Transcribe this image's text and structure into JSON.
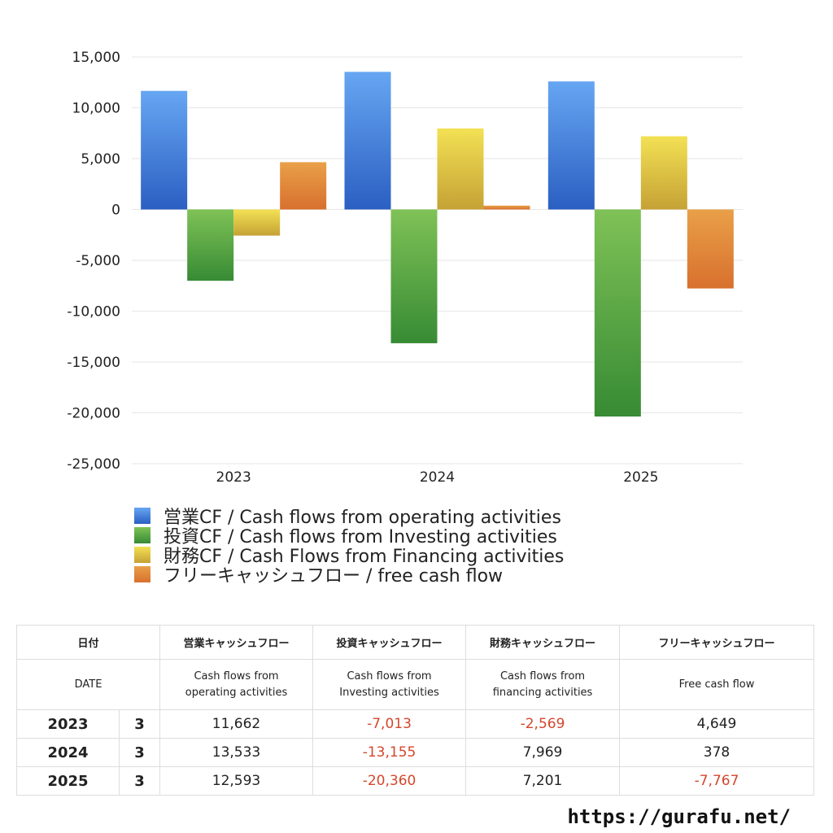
{
  "chart_data": {
    "type": "bar",
    "categories": [
      "2023",
      "2024",
      "2025"
    ],
    "series": [
      {
        "name": "営業CF / Cash flows from operating activities",
        "values": [
          11662,
          13533,
          12593
        ],
        "color_top": "#66a6f2",
        "color_bottom": "#2b5fc2"
      },
      {
        "name": "投資CF / Cash flows from Investing activities",
        "values": [
          -7013,
          -13155,
          -20360
        ],
        "color_top": "#7fc257",
        "color_bottom": "#378b34"
      },
      {
        "name": "財務CF / Cash Flows from Financing activities",
        "values": [
          -2569,
          7969,
          7201
        ],
        "color_top": "#f3e154",
        "color_bottom": "#c5a235"
      },
      {
        "name": "フリーキャッシュフロー / free cash flow",
        "values": [
          4649,
          378,
          -7767
        ],
        "color_top": "#e9a048",
        "color_bottom": "#d8702e"
      }
    ],
    "yticks": [
      "15,000",
      "10,000",
      "5,000",
      "0",
      "-5,000",
      "-10,000",
      "-15,000",
      "-20,000",
      "-25,000"
    ],
    "ylim": [
      -25000,
      15000
    ],
    "grid": true,
    "legend_position": "bottom-left"
  },
  "table": {
    "header": [
      "日付",
      "営業キャッシュフロー",
      "投資キャッシュフロー",
      "財務キャッシュフロー",
      "フリーキャッシュフロー"
    ],
    "subheader": [
      "DATE",
      "Cash flows from operating activities",
      "Cash flows from Investing activities",
      "Cash flows from financing activities",
      "Free cash flow"
    ],
    "rows": [
      {
        "year": "2023",
        "month": "3",
        "values": [
          "11,662",
          "-7,013",
          "-2,569",
          "4,649"
        ]
      },
      {
        "year": "2024",
        "month": "3",
        "values": [
          "13,533",
          "-13,155",
          "7,969",
          "378"
        ]
      },
      {
        "year": "2025",
        "month": "3",
        "values": [
          "12,593",
          "-20,360",
          "7,201",
          "-7,767"
        ]
      }
    ]
  },
  "source_url": "https://gurafu.net/",
  "colors": {
    "negative_text": "#d4472c",
    "grid": "#e6e6e6"
  }
}
